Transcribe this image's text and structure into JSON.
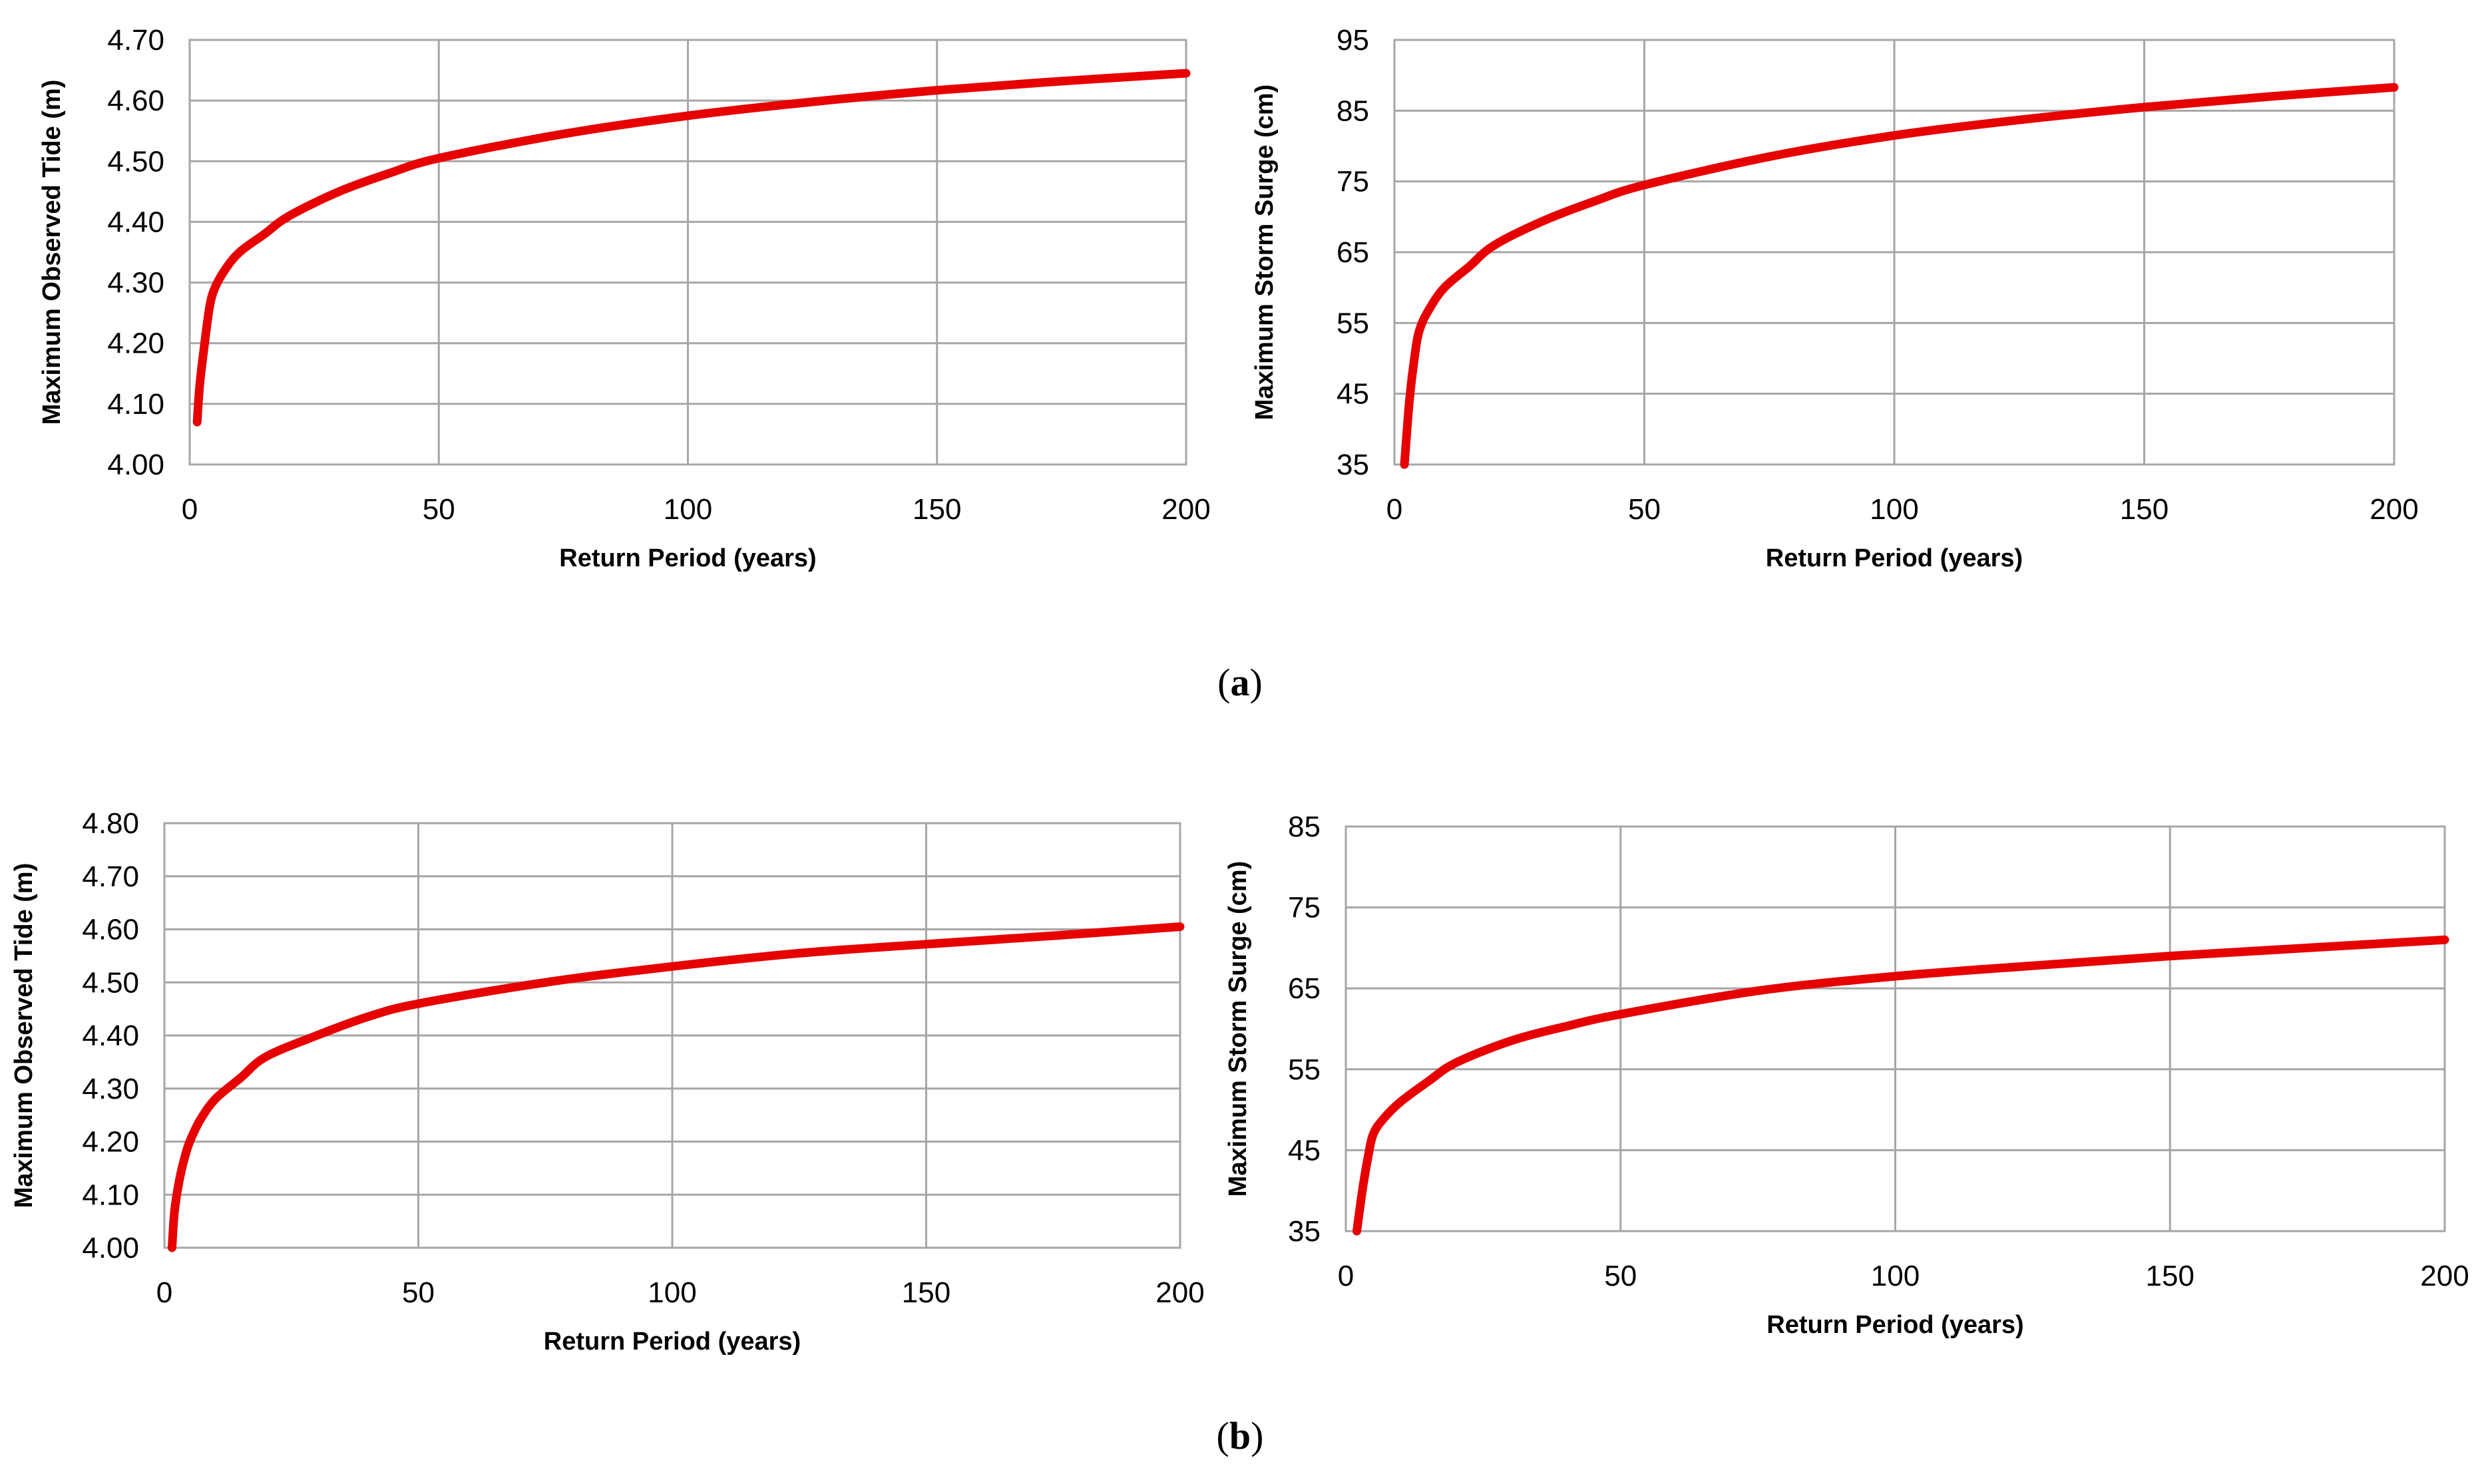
{
  "figure": {
    "panel_labels": [
      {
        "open": "(",
        "letter": "a",
        "close": ")"
      },
      {
        "open": "(",
        "letter": "b",
        "close": ")"
      }
    ],
    "line_color": "#e60000",
    "grid_color": "#a6a6a6"
  },
  "chart_data": [
    {
      "type": "line",
      "panel": "a",
      "xlabel": "Return Period (years)",
      "ylabel": "Maximum Observed Tide (m)",
      "xlim": [
        0,
        200
      ],
      "ylim": [
        4.0,
        4.7
      ],
      "x_ticks": [
        "0",
        "50",
        "100",
        "150",
        "200"
      ],
      "y_ticks": [
        "4.00",
        "4.10",
        "4.20",
        "4.30",
        "4.40",
        "4.50",
        "4.60",
        "4.70"
      ],
      "grid": true,
      "series": [
        {
          "name": "Maximum Observed Tide",
          "x": [
            1.5,
            2,
            3,
            4,
            5,
            7,
            10,
            15,
            20,
            30,
            40,
            50,
            75,
            100,
            125,
            150,
            175,
            200
          ],
          "y": [
            4.07,
            4.13,
            4.2,
            4.26,
            4.29,
            4.32,
            4.35,
            4.38,
            4.41,
            4.45,
            4.48,
            4.505,
            4.545,
            4.575,
            4.598,
            4.617,
            4.632,
            4.645
          ]
        }
      ]
    },
    {
      "type": "line",
      "panel": "a",
      "xlabel": "Return Period (years)",
      "ylabel": "Maximum Storm Surge (cm)",
      "xlim": [
        0,
        200
      ],
      "ylim": [
        35,
        95
      ],
      "x_ticks": [
        "0",
        "50",
        "100",
        "150",
        "200"
      ],
      "y_ticks": [
        "35",
        "45",
        "55",
        "65",
        "75",
        "85",
        "95"
      ],
      "grid": true,
      "series": [
        {
          "name": "Maximum Storm Surge",
          "x": [
            2,
            3,
            4,
            5,
            7,
            10,
            15,
            20,
            30,
            40,
            50,
            75,
            100,
            125,
            150,
            175,
            200
          ],
          "y": [
            35,
            44,
            50,
            54,
            57,
            60,
            63,
            66,
            69.5,
            72.2,
            74.5,
            78.5,
            81.5,
            83.7,
            85.5,
            87,
            88.3
          ]
        }
      ]
    },
    {
      "type": "line",
      "panel": "b",
      "xlabel": "Return Period (years)",
      "ylabel": "Maximum Observed Tide (m)",
      "xlim": [
        0,
        200
      ],
      "ylim": [
        4.0,
        4.8
      ],
      "x_ticks": [
        "0",
        "50",
        "100",
        "150",
        "200"
      ],
      "y_ticks": [
        "4.00",
        "4.10",
        "4.20",
        "4.30",
        "4.40",
        "4.50",
        "4.60",
        "4.70",
        "4.80"
      ],
      "grid": true,
      "series": [
        {
          "name": "Maximum Observed Tide",
          "x": [
            1.5,
            2,
            3,
            4,
            5,
            7,
            10,
            15,
            20,
            30,
            40,
            50,
            75,
            100,
            125,
            150,
            175,
            200
          ],
          "y": [
            4.0,
            4.07,
            4.13,
            4.17,
            4.2,
            4.24,
            4.28,
            4.32,
            4.36,
            4.4,
            4.435,
            4.46,
            4.5,
            4.53,
            4.555,
            4.572,
            4.588,
            4.605
          ]
        }
      ]
    },
    {
      "type": "line",
      "panel": "b",
      "xlabel": "Return Period (years)",
      "ylabel": "Maximum Storm Surge (cm)",
      "xlim": [
        0,
        200
      ],
      "ylim": [
        35,
        85
      ],
      "x_ticks": [
        "0",
        "50",
        "100",
        "150",
        "200"
      ],
      "y_ticks": [
        "35",
        "45",
        "55",
        "65",
        "75",
        "85"
      ],
      "grid": true,
      "series": [
        {
          "name": "Maximum Storm Surge",
          "x": [
            2,
            3,
            4,
            5,
            7,
            10,
            15,
            20,
            30,
            40,
            50,
            75,
            100,
            125,
            150,
            175,
            200
          ],
          "y": [
            35,
            40,
            44,
            47,
            49,
            51,
            53.5,
            55.8,
            58.5,
            60.3,
            61.8,
            64.7,
            66.5,
            67.8,
            69,
            70,
            71
          ]
        }
      ]
    }
  ]
}
